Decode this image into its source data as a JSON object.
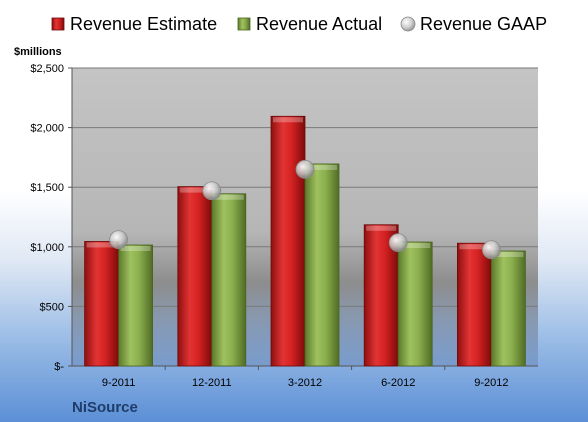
{
  "chart_data": {
    "type": "bar",
    "categories": [
      "9-2011",
      "12-2011",
      "3-2012",
      "6-2012",
      "9-2012"
    ],
    "series": [
      {
        "name": "Revenue Estimate",
        "kind": "bar",
        "color": "#cc1f1f",
        "values": [
          1045,
          1505,
          2095,
          1185,
          1030
        ]
      },
      {
        "name": "Revenue Actual",
        "kind": "bar",
        "color": "#86a94a",
        "values": [
          1015,
          1445,
          1695,
          1040,
          965
        ]
      },
      {
        "name": "Revenue GAAP",
        "kind": "marker",
        "color": "#c8c8c8",
        "values": [
          1060,
          1470,
          1650,
          1035,
          975
        ]
      }
    ],
    "ylabel": "$millions",
    "ylim": [
      0,
      2500
    ],
    "yticks": [
      0,
      500,
      1000,
      1500,
      2000,
      2500
    ],
    "ytick_labels": [
      "$-",
      "$500",
      "$1,000",
      "$1,500",
      "$2,000",
      "$2,500"
    ],
    "grid": true,
    "legend": "top"
  },
  "company": "NiSource"
}
